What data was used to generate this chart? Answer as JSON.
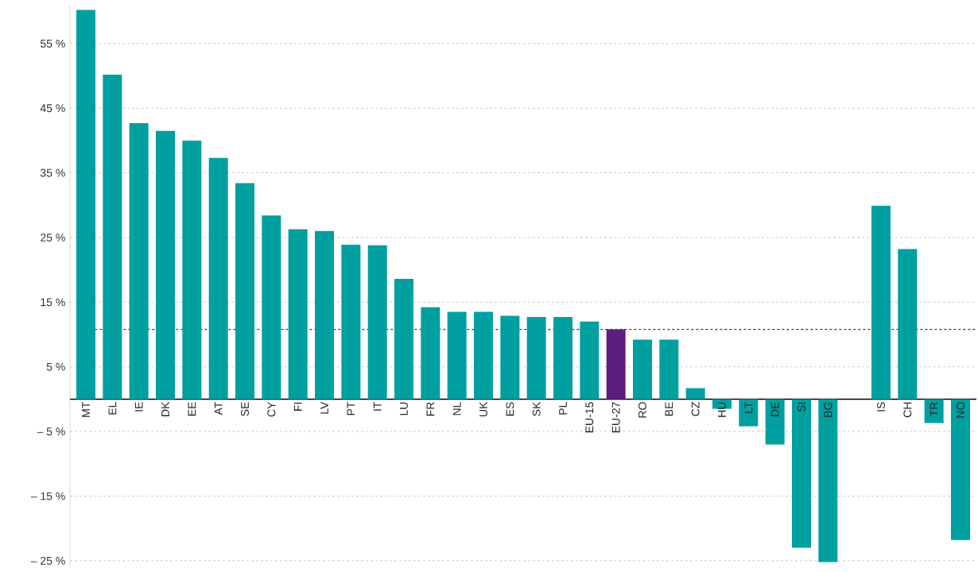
{
  "chart_data": {
    "type": "bar",
    "categories": [
      "MT",
      "EL",
      "IE",
      "DK",
      "EE",
      "AT",
      "SE",
      "CY",
      "FI",
      "LV",
      "PT",
      "IT",
      "LU",
      "FR",
      "NL",
      "UK",
      "ES",
      "SK",
      "PL",
      "EU-15",
      "EU-27",
      "RO",
      "BE",
      "CZ",
      "HU",
      "LT",
      "DE",
      "SI",
      "BG",
      null,
      "IS",
      "CH",
      "TR",
      "NO"
    ],
    "values": [
      60.2,
      50.2,
      42.7,
      41.5,
      40.0,
      37.3,
      33.4,
      28.4,
      26.3,
      26.0,
      23.9,
      23.8,
      18.6,
      14.2,
      13.5,
      13.5,
      12.9,
      12.7,
      12.7,
      12.0,
      10.8,
      9.2,
      9.2,
      1.7,
      -1.5,
      -4.2,
      -7.0,
      -23.0,
      -25.2,
      null,
      29.9,
      23.2,
      -3.7,
      -21.8
    ],
    "colors": [
      "#00a0a0",
      "#00a0a0",
      "#00a0a0",
      "#00a0a0",
      "#00a0a0",
      "#00a0a0",
      "#00a0a0",
      "#00a0a0",
      "#00a0a0",
      "#00a0a0",
      "#00a0a0",
      "#00a0a0",
      "#00a0a0",
      "#00a0a0",
      "#00a0a0",
      "#00a0a0",
      "#00a0a0",
      "#00a0a0",
      "#00a0a0",
      "#00a0a0",
      "#5b1f80",
      "#00a0a0",
      "#00a0a0",
      "#00a0a0",
      "#00a0a0",
      "#00a0a0",
      "#00a0a0",
      "#00a0a0",
      "#00a0a0",
      "#00a0a0",
      "#00a0a0",
      "#00a0a0",
      "#00a0a0",
      "#00a0a0"
    ],
    "ylim": [
      -26,
      61
    ],
    "yticks": [
      {
        "value": -25,
        "label": "– 25 %"
      },
      {
        "value": -15,
        "label": "– 15 %"
      },
      {
        "value": -5,
        "label": "– 5 %"
      },
      {
        "value": 5,
        "label": "5 %"
      },
      {
        "value": 15,
        "label": "15 %"
      },
      {
        "value": 25,
        "label": "25 %"
      },
      {
        "value": 35,
        "label": "35 %"
      },
      {
        "value": 45,
        "label": "45 %"
      },
      {
        "value": 55,
        "label": "55 %"
      }
    ],
    "grid": "y",
    "ref_lines": [
      {
        "axis": "y",
        "value": 10.8,
        "color": "#5b1f80",
        "line_style": "dashed"
      }
    ]
  }
}
